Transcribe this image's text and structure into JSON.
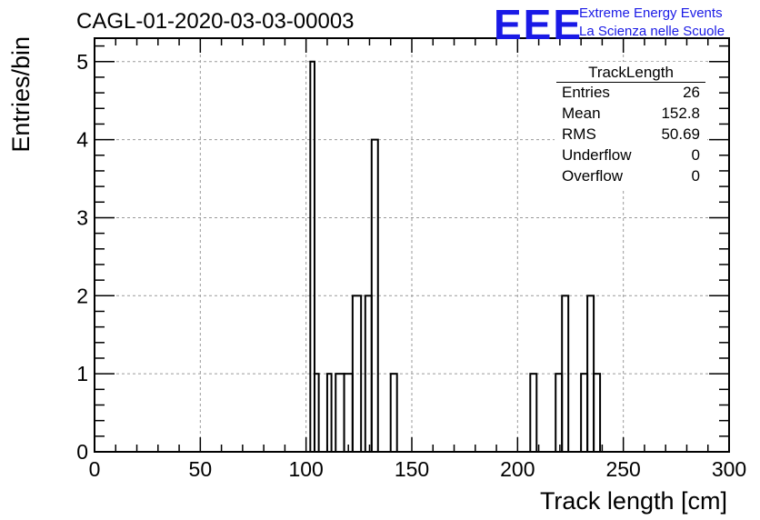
{
  "header": {
    "run_title": "CAGL-01-2020-03-03-00003",
    "logo_mark": "EEE",
    "logo_line1": "Extreme Energy Events",
    "logo_line2": "La Scienza nelle Scuole"
  },
  "stats": {
    "title": "TrackLength",
    "rows": [
      {
        "key": "Entries",
        "value": "26"
      },
      {
        "key": "Mean",
        "value": "152.8"
      },
      {
        "key": "RMS",
        "value": "50.69"
      },
      {
        "key": "Underflow",
        "value": "0"
      },
      {
        "key": "Overflow",
        "value": "0"
      }
    ]
  },
  "colors": {
    "line": "#000000",
    "grid": "#9a9a9a",
    "logo": "#1a1ae6"
  },
  "chart_data": {
    "type": "bar",
    "style": "step-histogram",
    "xlabel": "Track length [cm]",
    "ylabel": "Entries/bin",
    "xlim": [
      0,
      300
    ],
    "ylim": [
      0,
      5.3
    ],
    "bin_width": 4,
    "grid": true,
    "legend_position": "top-right",
    "x_ticks": [
      0,
      50,
      100,
      150,
      200,
      250,
      300
    ],
    "y_ticks": [
      0,
      1,
      2,
      3,
      4,
      5
    ],
    "bins": [
      {
        "x": 100,
        "value": 0
      },
      {
        "x": 102,
        "value": 5
      },
      {
        "x": 104,
        "value": 1
      },
      {
        "x": 106,
        "value": 0
      },
      {
        "x": 110,
        "value": 1
      },
      {
        "x": 112,
        "value": 0
      },
      {
        "x": 114,
        "value": 1
      },
      {
        "x": 118,
        "value": 1
      },
      {
        "x": 122,
        "value": 2
      },
      {
        "x": 126,
        "value": 0
      },
      {
        "x": 128,
        "value": 2
      },
      {
        "x": 131,
        "value": 4
      },
      {
        "x": 134,
        "value": 0
      },
      {
        "x": 140,
        "value": 1
      },
      {
        "x": 143,
        "value": 0
      },
      {
        "x": 206,
        "value": 1
      },
      {
        "x": 209,
        "value": 0
      },
      {
        "x": 218,
        "value": 1
      },
      {
        "x": 221,
        "value": 2
      },
      {
        "x": 224,
        "value": 0
      },
      {
        "x": 230,
        "value": 1
      },
      {
        "x": 233,
        "value": 2
      },
      {
        "x": 236,
        "value": 1
      },
      {
        "x": 239,
        "value": 0
      }
    ]
  }
}
